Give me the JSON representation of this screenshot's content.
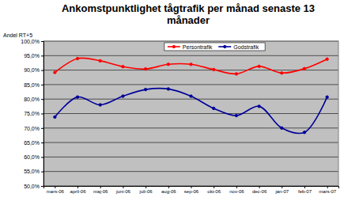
{
  "chart_data": {
    "type": "line",
    "title": "Ankomstpunktlighet tågtrafik per månad senaste 13 månader",
    "y_label": "Andel RT+5",
    "categories": [
      "mars-06",
      "april-06",
      "maj-06",
      "juni-06",
      "juli-06",
      "aug-06",
      "sep-06",
      "okt-06",
      "nov-06",
      "dec-06",
      "jan-07",
      "feb-07",
      "mars-07"
    ],
    "series": [
      {
        "name": "Persontrafik",
        "color": "#ff0000",
        "marker": "circle",
        "line_style": "solid",
        "values": [
          89.2,
          94.0,
          93.2,
          91.2,
          90.4,
          92.0,
          92.0,
          90.2,
          88.7,
          91.3,
          89.0,
          90.5,
          93.8
        ]
      },
      {
        "name": "Godstrafik",
        "color": "#000099",
        "marker": "circle",
        "line_style": "solid",
        "values": [
          73.8,
          80.7,
          78.0,
          81.0,
          83.3,
          83.5,
          81.0,
          76.8,
          74.3,
          77.5,
          70.0,
          68.5,
          80.7
        ]
      }
    ],
    "ylim": [
      50,
      100
    ],
    "yticks": [
      {
        "value": 50,
        "label": "50,0%"
      },
      {
        "value": 55,
        "label": "55,0%"
      },
      {
        "value": 60,
        "label": "60,0%"
      },
      {
        "value": 65,
        "label": "65,0%"
      },
      {
        "value": 70,
        "label": "70,0%"
      },
      {
        "value": 75,
        "label": "75,0%"
      },
      {
        "value": 80,
        "label": "80,0%"
      },
      {
        "value": 85,
        "label": "85,0%"
      },
      {
        "value": 90,
        "label": "90,0%"
      },
      {
        "value": 95,
        "label": "95,0%"
      },
      {
        "value": 100,
        "label": "100,0%"
      }
    ],
    "grid": true,
    "legend": "top"
  }
}
